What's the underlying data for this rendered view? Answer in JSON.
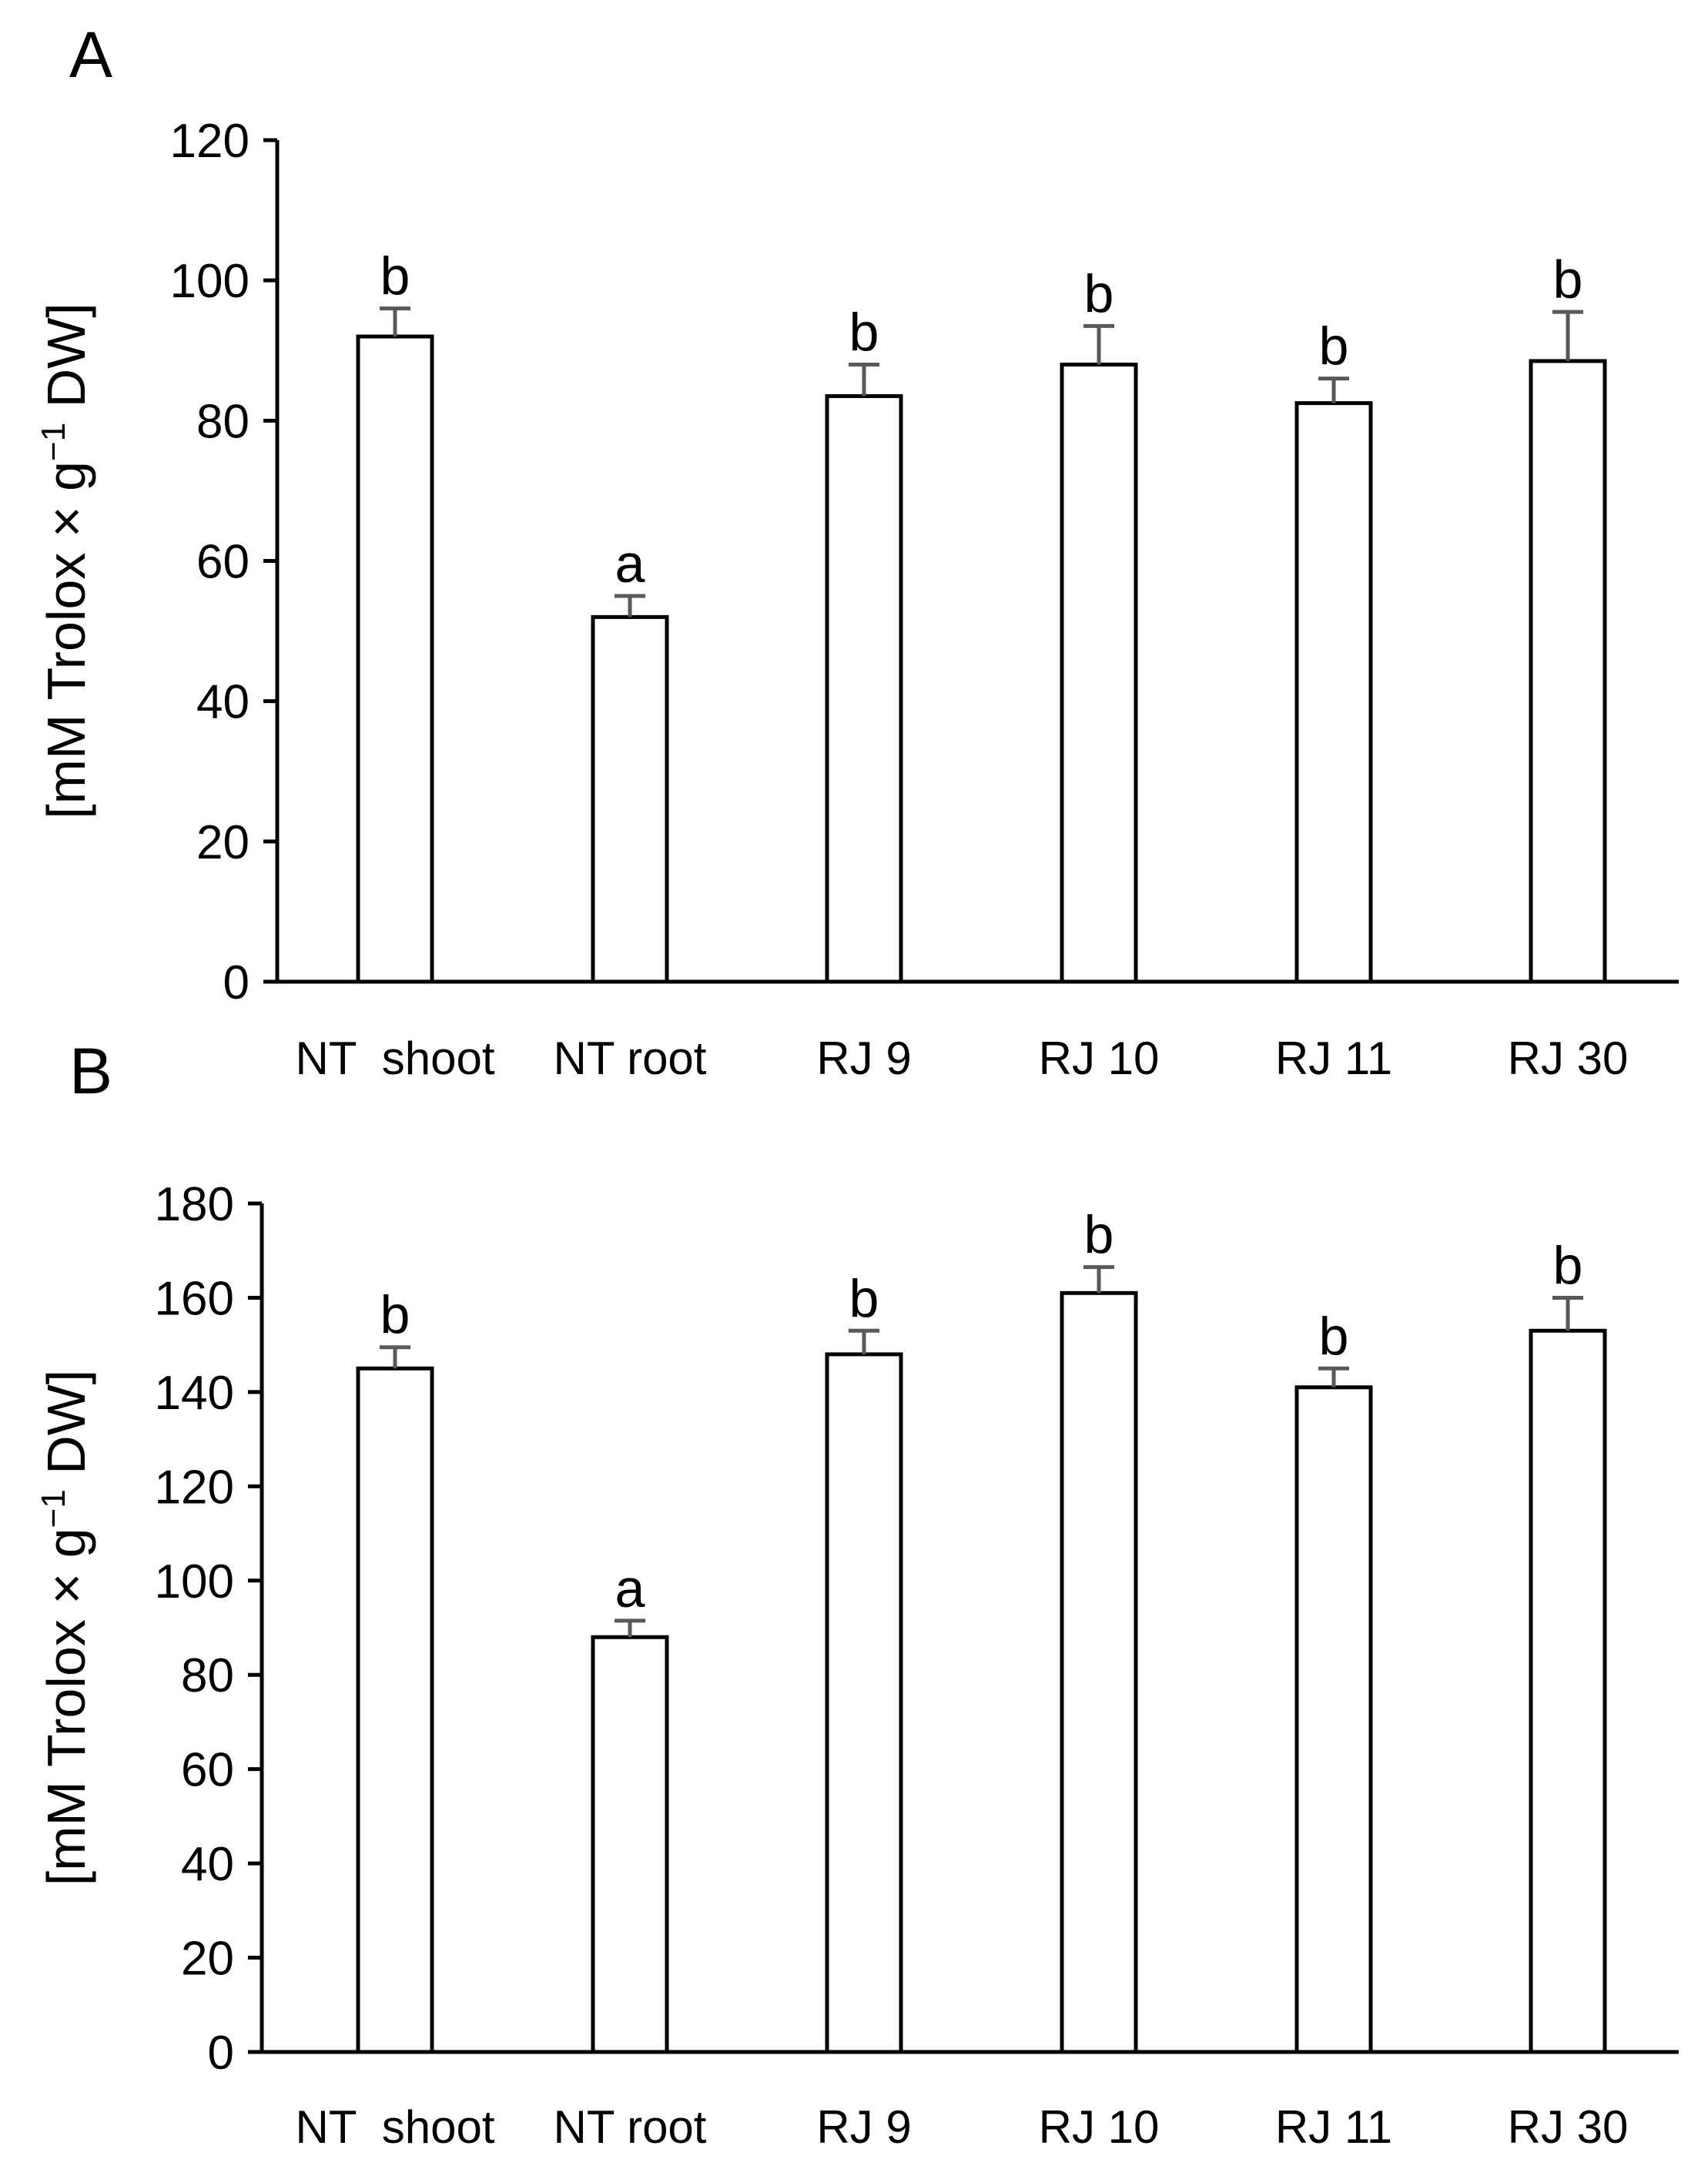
{
  "chart_data": [
    {
      "panel": "A",
      "type": "bar",
      "categories": [
        "NT  shoot",
        "NT root",
        "RJ 9",
        "RJ 10",
        "RJ 11",
        "RJ 30"
      ],
      "values": [
        92,
        52,
        83.5,
        88,
        82.5,
        88.5
      ],
      "errors": [
        4,
        3,
        4.5,
        5.5,
        3.5,
        7
      ],
      "significance": [
        "b",
        "a",
        "b",
        "b",
        "b",
        "b"
      ],
      "ylabel": "[mM Trolox × g⁻¹ DW]",
      "ylabel_parts": {
        "prefix": "[mM Trolox × g",
        "superscript": "−1",
        "suffix": " DW]"
      },
      "ylim": [
        0,
        120
      ],
      "yticks": [
        0,
        20,
        40,
        60,
        80,
        100,
        120
      ],
      "grid": false
    },
    {
      "panel": "B",
      "type": "bar",
      "categories": [
        "NT  shoot",
        "NT root",
        "RJ 9",
        "RJ 10",
        "RJ 11",
        "RJ 30"
      ],
      "values": [
        145,
        88,
        148,
        161,
        141,
        153
      ],
      "errors": [
        4.5,
        3.5,
        5,
        5.5,
        4,
        7
      ],
      "significance": [
        "b",
        "a",
        "b",
        "b",
        "b",
        "b"
      ],
      "ylabel": "[mM Trolox × g⁻¹ DW]",
      "ylabel_parts": {
        "prefix": "[mM Trolox × g",
        "superscript": "−1",
        "suffix": " DW]"
      },
      "ylim": [
        0,
        180
      ],
      "yticks": [
        0,
        20,
        40,
        60,
        80,
        100,
        120,
        140,
        160,
        180
      ],
      "grid": false
    }
  ]
}
